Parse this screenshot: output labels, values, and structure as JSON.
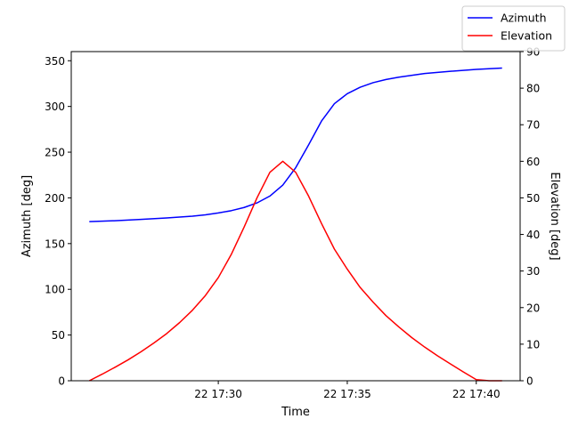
{
  "chart_data": {
    "type": "line",
    "xlabel": "Time",
    "ylabel_left": "Azimuth [deg]",
    "ylabel_right": "Elevation [deg]",
    "x_tick_labels": [
      {
        "t": 30,
        "label": "22 17:30"
      },
      {
        "t": 35,
        "label": "22 17:35"
      },
      {
        "t": 40,
        "label": "22 17:40"
      }
    ],
    "x_note": "x values are minutes past 17:00",
    "xlim": [
      24.3,
      41.7
    ],
    "ylim_left": [
      0,
      360
    ],
    "ylim_right": [
      0,
      90
    ],
    "yticks_left": [
      0,
      50,
      100,
      150,
      200,
      250,
      300,
      350
    ],
    "yticks_right": [
      0,
      10,
      20,
      30,
      40,
      50,
      60,
      70,
      80,
      90
    ],
    "legend_position": "top-right",
    "grid": false,
    "series": [
      {
        "name": "Azimuth",
        "axis": "left",
        "color": "#0000ff",
        "x": [
          25.0,
          26.0,
          27.0,
          28.0,
          29.0,
          29.5,
          30.0,
          30.5,
          31.0,
          31.5,
          32.0,
          32.5,
          33.0,
          33.5,
          34.0,
          34.5,
          35.0,
          35.5,
          36.0,
          36.5,
          37.0,
          38.0,
          39.0,
          40.0,
          41.0
        ],
        "values": [
          174,
          175,
          176.5,
          178,
          180,
          181.5,
          183.5,
          186,
          189.5,
          194.5,
          202,
          214,
          233,
          258,
          284,
          303,
          314,
          321,
          326,
          329.5,
          332,
          336,
          338.5,
          340.5,
          342
        ]
      },
      {
        "name": "Elevation",
        "axis": "right",
        "color": "#ff0000",
        "x": [
          25.0,
          25.5,
          26.0,
          26.5,
          27.0,
          27.5,
          28.0,
          28.5,
          29.0,
          29.5,
          30.0,
          30.5,
          31.0,
          31.5,
          32.0,
          32.5,
          33.0,
          33.5,
          34.0,
          34.5,
          35.0,
          35.5,
          36.0,
          36.5,
          37.0,
          37.5,
          38.0,
          38.5,
          39.0,
          39.5,
          40.0,
          40.5,
          41.0
        ],
        "values": [
          0,
          1.8,
          3.7,
          5.7,
          7.9,
          10.3,
          12.9,
          15.9,
          19.3,
          23.3,
          28.2,
          34.5,
          42,
          50,
          57,
          60,
          57,
          50.5,
          43,
          36,
          30.5,
          25.5,
          21.5,
          17.8,
          14.7,
          11.8,
          9.2,
          6.8,
          4.6,
          2.4,
          0.3,
          0,
          0
        ]
      }
    ]
  }
}
